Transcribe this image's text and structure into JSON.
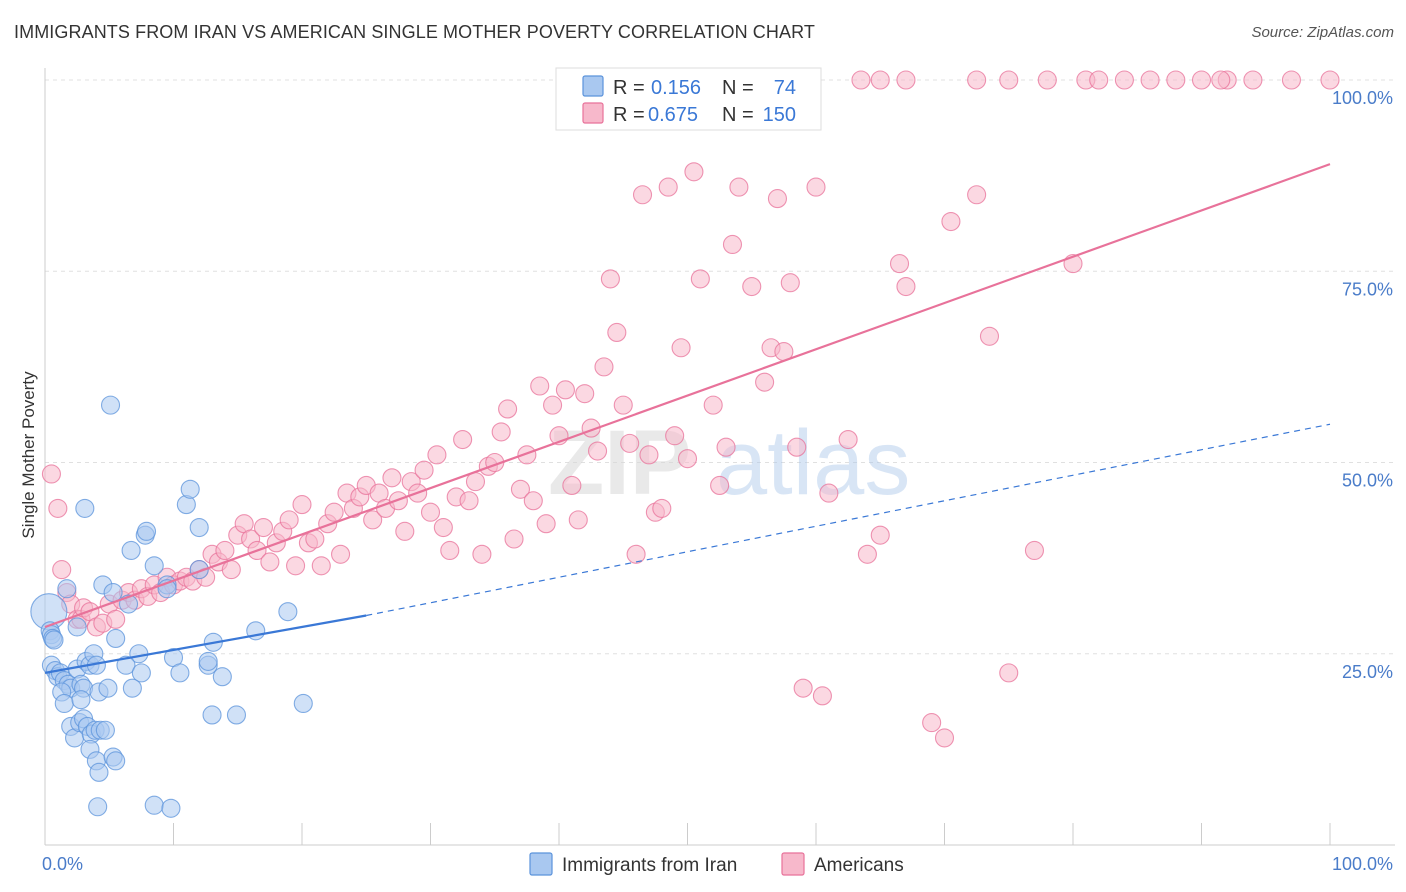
{
  "header": {
    "title": "IMMIGRANTS FROM IRAN VS AMERICAN SINGLE MOTHER POVERTY CORRELATION CHART",
    "source": "Source: ZipAtlas.com"
  },
  "watermark": {
    "zip": "ZIP",
    "atlas": "atlas"
  },
  "legend": {
    "rows": [
      {
        "r_label": "R =",
        "r_value": "0.156",
        "n_label": "N =",
        "n_value": "74",
        "color": "#a9c8f0"
      },
      {
        "r_label": "R =",
        "r_value": "0.675",
        "n_label": "N =",
        "n_value": "150",
        "color": "#f7b8cb"
      }
    ]
  },
  "chart_data": {
    "type": "scatter",
    "title": "IMMIGRANTS FROM IRAN VS AMERICAN SINGLE MOTHER POVERTY CORRELATION CHART",
    "xlabel": "",
    "ylabel": "Single Mother Poverty",
    "xlim": [
      0,
      100
    ],
    "ylim": [
      0,
      100
    ],
    "x_tick_labels": [
      "0.0%",
      "100.0%"
    ],
    "y_tick_labels": [
      "25.0%",
      "50.0%",
      "75.0%",
      "100.0%"
    ],
    "y_ticks": [
      25,
      50,
      75,
      100
    ],
    "grid": true,
    "legend_position": "top-center",
    "series": [
      {
        "name": "Immigrants from Iran",
        "color": "#5b93db",
        "fill": "#a9c8f0",
        "r": 0.156,
        "n": 74,
        "trend": {
          "x": [
            0,
            25
          ],
          "y": [
            22.5,
            30.0
          ],
          "dashed_to": [
            100,
            55.0
          ]
        },
        "points": [
          [
            0.3,
            30.5
          ],
          [
            0.4,
            28.0
          ],
          [
            0.5,
            27.5
          ],
          [
            0.6,
            27.0
          ],
          [
            0.7,
            26.8
          ],
          [
            0.5,
            23.5
          ],
          [
            0.8,
            22.8
          ],
          [
            1.0,
            22.0
          ],
          [
            1.2,
            22.5
          ],
          [
            1.5,
            21.5
          ],
          [
            1.8,
            21.0
          ],
          [
            2.0,
            20.5
          ],
          [
            1.3,
            20.0
          ],
          [
            2.5,
            23.0
          ],
          [
            2.8,
            21.0
          ],
          [
            3.0,
            20.5
          ],
          [
            3.2,
            24.0
          ],
          [
            3.5,
            23.5
          ],
          [
            3.8,
            25.0
          ],
          [
            4.0,
            23.5
          ],
          [
            4.2,
            20.0
          ],
          [
            1.5,
            18.5
          ],
          [
            2.8,
            19.0
          ],
          [
            2.0,
            15.5
          ],
          [
            2.3,
            14.0
          ],
          [
            2.7,
            16.0
          ],
          [
            3.0,
            16.5
          ],
          [
            3.3,
            15.5
          ],
          [
            3.6,
            14.5
          ],
          [
            3.9,
            15.0
          ],
          [
            4.3,
            15.0
          ],
          [
            4.7,
            15.0
          ],
          [
            3.5,
            12.5
          ],
          [
            4.0,
            11.0
          ],
          [
            5.3,
            11.5
          ],
          [
            5.5,
            11.0
          ],
          [
            4.2,
            9.5
          ],
          [
            4.1,
            5.0
          ],
          [
            8.5,
            5.2
          ],
          [
            9.8,
            4.8
          ],
          [
            2.5,
            28.5
          ],
          [
            1.7,
            33.5
          ],
          [
            4.5,
            34.0
          ],
          [
            5.3,
            33.0
          ],
          [
            5.5,
            27.0
          ],
          [
            6.5,
            31.5
          ],
          [
            7.3,
            25.0
          ],
          [
            6.3,
            23.5
          ],
          [
            7.5,
            22.5
          ],
          [
            6.8,
            20.5
          ],
          [
            4.9,
            20.5
          ],
          [
            8.5,
            36.5
          ],
          [
            9.5,
            34.0
          ],
          [
            9.5,
            33.5
          ],
          [
            10.0,
            24.5
          ],
          [
            10.5,
            22.5
          ],
          [
            12.7,
            23.5
          ],
          [
            12.7,
            24.0
          ],
          [
            13.1,
            26.5
          ],
          [
            13.8,
            22.0
          ],
          [
            13.0,
            17.0
          ],
          [
            14.9,
            17.0
          ],
          [
            16.4,
            28.0
          ],
          [
            18.9,
            30.5
          ],
          [
            20.1,
            18.5
          ],
          [
            7.8,
            40.5
          ],
          [
            7.9,
            41.0
          ],
          [
            6.7,
            38.5
          ],
          [
            11.0,
            44.5
          ],
          [
            11.3,
            46.5
          ],
          [
            12.0,
            41.5
          ],
          [
            3.1,
            44.0
          ],
          [
            5.1,
            57.5
          ],
          [
            12.0,
            36.0
          ]
        ]
      },
      {
        "name": "Americans",
        "color": "#e8729a",
        "fill": "#f7b8cb",
        "r": 0.675,
        "n": 150,
        "trend": {
          "x": [
            0,
            100
          ],
          "y": [
            28.5,
            89.0
          ]
        },
        "points": [
          [
            0.5,
            48.5
          ],
          [
            1.0,
            44.0
          ],
          [
            1.3,
            36.0
          ],
          [
            1.7,
            33.0
          ],
          [
            2.0,
            31.5
          ],
          [
            2.5,
            29.5
          ],
          [
            2.8,
            29.5
          ],
          [
            3.0,
            31.0
          ],
          [
            3.5,
            30.5
          ],
          [
            4.0,
            28.5
          ],
          [
            4.5,
            29.0
          ],
          [
            5.0,
            31.5
          ],
          [
            5.5,
            29.5
          ],
          [
            6.0,
            32.0
          ],
          [
            6.5,
            33.0
          ],
          [
            7.0,
            32.0
          ],
          [
            7.5,
            33.5
          ],
          [
            8.0,
            32.5
          ],
          [
            8.5,
            34.0
          ],
          [
            9.0,
            33.0
          ],
          [
            9.5,
            35.0
          ],
          [
            10.0,
            34.0
          ],
          [
            10.5,
            34.5
          ],
          [
            11.0,
            35.0
          ],
          [
            11.5,
            34.5
          ],
          [
            12.0,
            36.0
          ],
          [
            12.5,
            35.0
          ],
          [
            13.0,
            38.0
          ],
          [
            13.5,
            37.0
          ],
          [
            14.0,
            38.5
          ],
          [
            14.5,
            36.0
          ],
          [
            15.0,
            40.5
          ],
          [
            15.5,
            42.0
          ],
          [
            16.0,
            40.0
          ],
          [
            16.5,
            38.5
          ],
          [
            17.0,
            41.5
          ],
          [
            17.5,
            37.0
          ],
          [
            18.0,
            39.5
          ],
          [
            18.5,
            41.0
          ],
          [
            19.0,
            42.5
          ],
          [
            19.5,
            36.5
          ],
          [
            20.0,
            44.5
          ],
          [
            20.5,
            39.5
          ],
          [
            21.0,
            40.0
          ],
          [
            21.5,
            36.5
          ],
          [
            22.0,
            42.0
          ],
          [
            22.5,
            43.5
          ],
          [
            23.0,
            38.0
          ],
          [
            23.5,
            46.0
          ],
          [
            24.0,
            44.0
          ],
          [
            24.5,
            45.5
          ],
          [
            25.0,
            47.0
          ],
          [
            25.5,
            42.5
          ],
          [
            26.0,
            46.0
          ],
          [
            26.5,
            44.0
          ],
          [
            27.0,
            48.0
          ],
          [
            27.5,
            45.0
          ],
          [
            28.0,
            41.0
          ],
          [
            28.5,
            47.5
          ],
          [
            29.0,
            46.0
          ],
          [
            29.5,
            49.0
          ],
          [
            30.0,
            43.5
          ],
          [
            30.5,
            51.0
          ],
          [
            31.0,
            41.5
          ],
          [
            31.5,
            38.5
          ],
          [
            32.0,
            45.5
          ],
          [
            32.5,
            53.0
          ],
          [
            33.0,
            45.0
          ],
          [
            33.5,
            47.5
          ],
          [
            34.0,
            38.0
          ],
          [
            34.5,
            49.5
          ],
          [
            35.0,
            50.0
          ],
          [
            35.5,
            54.0
          ],
          [
            36.0,
            57.0
          ],
          [
            36.5,
            40.0
          ],
          [
            37.0,
            46.5
          ],
          [
            37.5,
            51.0
          ],
          [
            38.0,
            45.0
          ],
          [
            38.5,
            60.0
          ],
          [
            39.0,
            42.0
          ],
          [
            39.5,
            57.5
          ],
          [
            40.0,
            53.5
          ],
          [
            40.5,
            59.5
          ],
          [
            41.0,
            47.0
          ],
          [
            41.5,
            42.5
          ],
          [
            42.0,
            59.0
          ],
          [
            42.5,
            54.5
          ],
          [
            43.0,
            51.5
          ],
          [
            43.5,
            62.5
          ],
          [
            44.0,
            74.0
          ],
          [
            44.5,
            67.0
          ],
          [
            45.0,
            57.5
          ],
          [
            45.5,
            52.5
          ],
          [
            46.0,
            38.0
          ],
          [
            46.5,
            85.0
          ],
          [
            47.0,
            51.0
          ],
          [
            47.5,
            43.5
          ],
          [
            48.0,
            44.0
          ],
          [
            48.5,
            86.0
          ],
          [
            49.0,
            53.5
          ],
          [
            49.5,
            65.0
          ],
          [
            50.0,
            50.5
          ],
          [
            50.5,
            88.0
          ],
          [
            51.0,
            74.0
          ],
          [
            52.0,
            57.5
          ],
          [
            52.5,
            47.0
          ],
          [
            53.0,
            52.0
          ],
          [
            53.5,
            78.5
          ],
          [
            54.0,
            86.0
          ],
          [
            55.0,
            73.0
          ],
          [
            56.0,
            60.5
          ],
          [
            56.5,
            65.0
          ],
          [
            57.0,
            84.5
          ],
          [
            57.5,
            64.5
          ],
          [
            58.0,
            73.5
          ],
          [
            58.5,
            52.0
          ],
          [
            59.0,
            20.5
          ],
          [
            60.0,
            86.0
          ],
          [
            60.5,
            19.5
          ],
          [
            61.0,
            46.0
          ],
          [
            62.5,
            53.0
          ],
          [
            64.0,
            38.0
          ],
          [
            65.0,
            40.5
          ],
          [
            66.5,
            76.0
          ],
          [
            67.0,
            73.0
          ],
          [
            69.0,
            16.0
          ],
          [
            70.0,
            14.0
          ],
          [
            70.5,
            81.5
          ],
          [
            72.5,
            85.0
          ],
          [
            73.5,
            66.5
          ],
          [
            75.0,
            22.5
          ],
          [
            77.0,
            38.5
          ],
          [
            80.0,
            76.0
          ],
          [
            81.0,
            100.0
          ],
          [
            82.0,
            100.0
          ],
          [
            86.0,
            100.0
          ],
          [
            88.0,
            100.0
          ],
          [
            90.0,
            100.0
          ],
          [
            92.0,
            100.0
          ],
          [
            94.0,
            100.0
          ],
          [
            97.0,
            100.0
          ],
          [
            100.0,
            100.0
          ],
          [
            63.5,
            100.0
          ],
          [
            65.0,
            100.0
          ],
          [
            67.0,
            100.0
          ],
          [
            72.5,
            100.0
          ],
          [
            75.0,
            100.0
          ],
          [
            78.0,
            100.0
          ],
          [
            84.0,
            100.0
          ],
          [
            91.5,
            100.0
          ]
        ]
      }
    ]
  }
}
